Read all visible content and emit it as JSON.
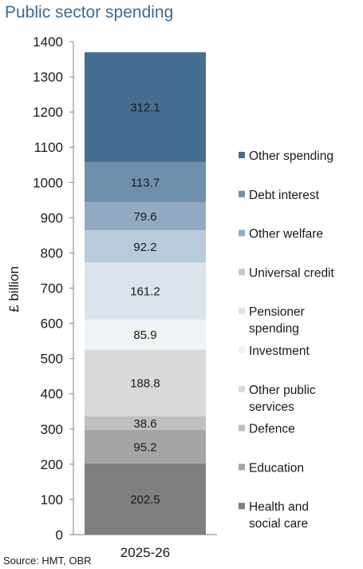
{
  "chart_data": {
    "type": "bar",
    "stacked": true,
    "title": "Public sector spending",
    "ylabel": "£ billion",
    "xlabel": "",
    "ylim": [
      0,
      1400
    ],
    "yticks": [
      0,
      100,
      200,
      300,
      400,
      500,
      600,
      700,
      800,
      900,
      1000,
      1100,
      1200,
      1300,
      1400
    ],
    "categories": [
      "2025-26"
    ],
    "series": [
      {
        "name": "Health and social care",
        "values": [
          202.5
        ],
        "color": "#7f7f7f",
        "value_label": "202.5"
      },
      {
        "name": "Education",
        "values": [
          95.2
        ],
        "color": "#a5a5a5",
        "value_label": "95.2"
      },
      {
        "name": "Defence",
        "values": [
          38.6
        ],
        "color": "#bfbfbf",
        "value_label": "38.6"
      },
      {
        "name": "Other public services",
        "values": [
          188.8
        ],
        "color": "#d9d9d9",
        "value_label": "188.8"
      },
      {
        "name": "Investment",
        "values": [
          85.9
        ],
        "color": "#eff2f6",
        "value_label": "85.9"
      },
      {
        "name": "Pensioner spending",
        "values": [
          161.2
        ],
        "color": "#dbe3ec",
        "value_label": "161.2"
      },
      {
        "name": "Universal credit",
        "values": [
          92.2
        ],
        "color": "#b9cbda",
        "value_label": "92.2"
      },
      {
        "name": "Other welfare",
        "values": [
          79.6
        ],
        "color": "#92abc2",
        "value_label": "79.6"
      },
      {
        "name": "Debt interest",
        "values": [
          113.7
        ],
        "color": "#6f90ad",
        "value_label": "113.7"
      },
      {
        "name": "Other spending",
        "values": [
          312.1
        ],
        "color": "#456e92",
        "value_label": "312.1"
      }
    ],
    "legend_position": "right",
    "grid": false
  },
  "source": "Source: HMT, OBR"
}
